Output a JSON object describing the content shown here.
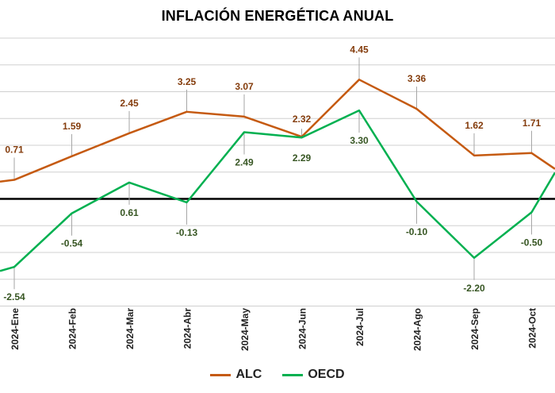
{
  "chart_data": {
    "type": "line",
    "title": "INFLACIÓN ENERGÉTICA ANUAL",
    "categories": [
      "2024-Ene",
      "2024-Feb",
      "2024-Mar",
      "2024-Abr",
      "2024-May",
      "2024-Jun",
      "2024-Jul",
      "2024-Ago",
      "2024-Sep",
      "2024-Oct"
    ],
    "series": [
      {
        "name": "ALC",
        "color": "#C55A11",
        "values": [
          0.71,
          1.59,
          2.45,
          3.25,
          3.07,
          2.32,
          4.45,
          3.36,
          1.62,
          1.71
        ],
        "labels": [
          "0.71",
          "1.59",
          "2.45",
          "3.25",
          "3.07",
          "2.32",
          "4.45",
          "3.36",
          "1.62",
          "1.71"
        ]
      },
      {
        "name": "OECD",
        "color": "#00B050",
        "values": [
          -2.54,
          -0.54,
          0.61,
          -0.13,
          2.49,
          2.29,
          3.3,
          -0.1,
          -2.2,
          -0.5
        ],
        "labels": [
          "-2.54",
          "-0.54",
          "0.61",
          "-0.13",
          "2.49",
          "2.29",
          "3.30",
          "-0.10",
          "-2.20",
          "-0.50"
        ]
      }
    ],
    "ylim": [
      -4,
      6
    ],
    "grid": true,
    "legend": "bottom"
  }
}
